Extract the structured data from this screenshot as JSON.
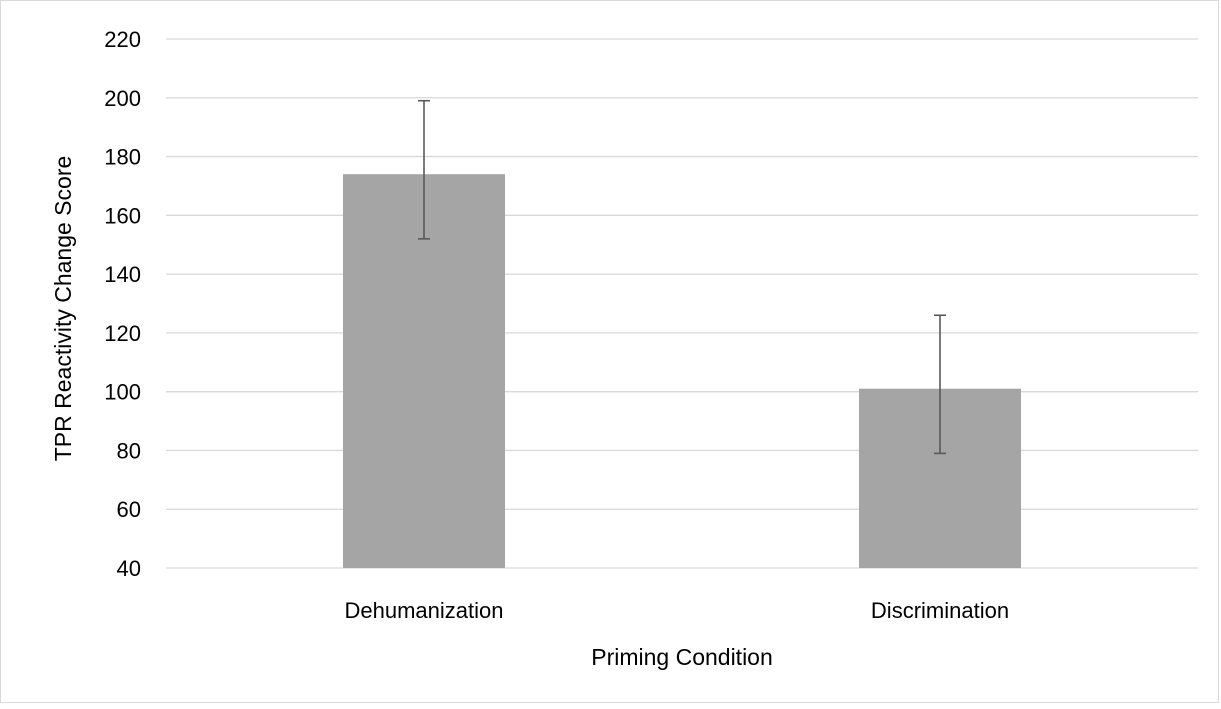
{
  "chart_data": {
    "type": "bar",
    "title": "",
    "xlabel": "Priming Condition",
    "ylabel": "TPR Reactivity Change Score",
    "categories": [
      "Dehumanization",
      "Discrimination"
    ],
    "values": [
      174,
      101
    ],
    "error_bars": {
      "upper": [
        199,
        126
      ],
      "lower": [
        152,
        79
      ]
    },
    "ylim": [
      40,
      220
    ],
    "yticks": [
      "40",
      "60",
      "80",
      "100",
      "120",
      "140",
      "160",
      "180",
      "200",
      "220"
    ],
    "grid": true,
    "legend": "none"
  },
  "colors": {
    "bar": "#a5a5a5",
    "gridline": "#d9d9d9",
    "error_bar": "#595959",
    "border": "#d9d9d9"
  }
}
